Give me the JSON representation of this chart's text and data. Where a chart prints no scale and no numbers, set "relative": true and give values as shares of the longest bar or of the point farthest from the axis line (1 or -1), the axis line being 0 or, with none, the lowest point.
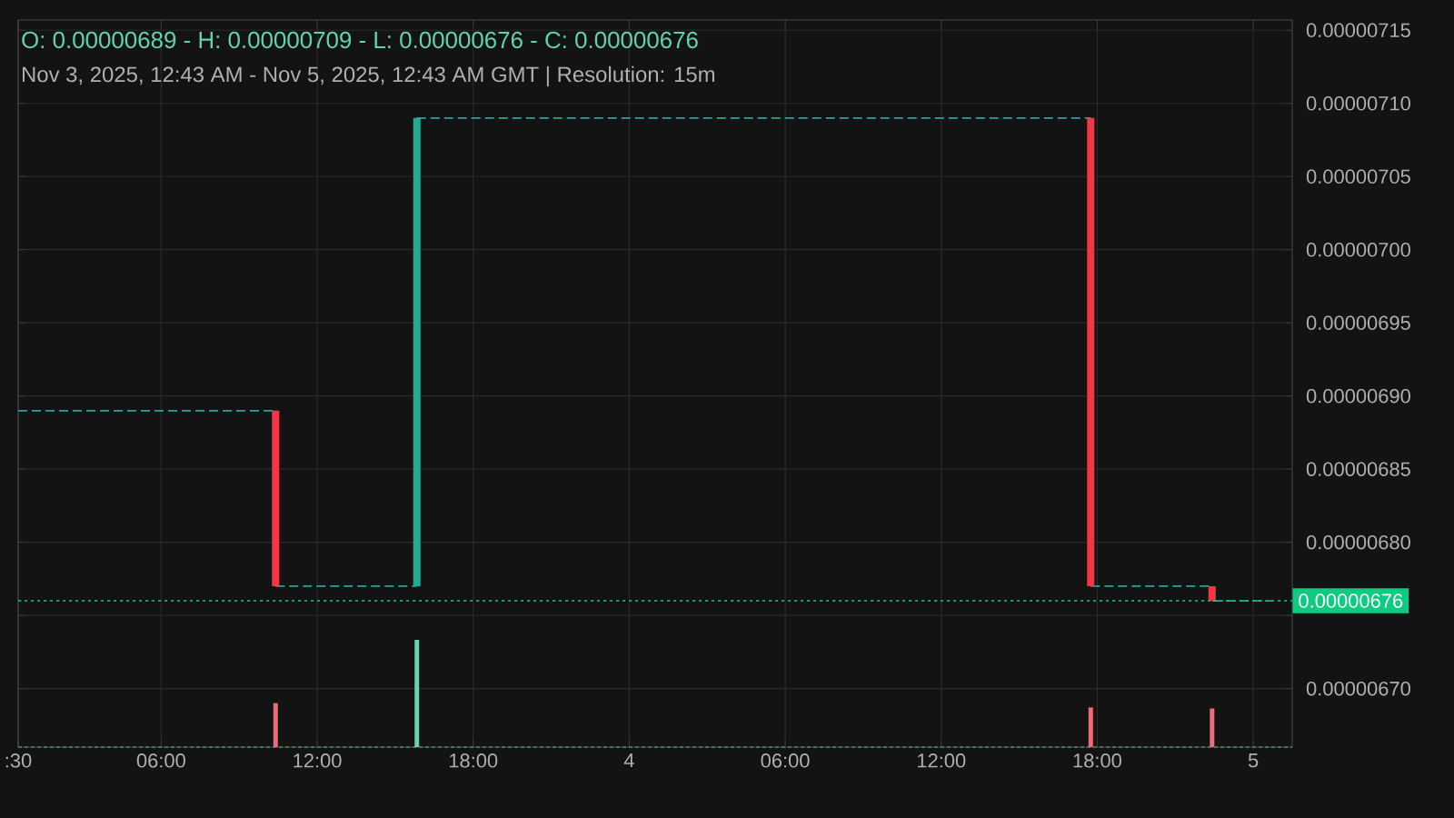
{
  "chart_data": [
    {
      "type": "candlestick",
      "title": "O: 0.00000689 - H: 0.00000709 - L: 0.00000676 - C: 0.00000676",
      "subtitle": "Nov 3, 2025, 12:43 AM - Nov 5, 2025, 12:43 AM GMT   |   Resolution: 15m",
      "x": [
        "2025-11-03T10:24",
        "2025-11-03T15:50",
        "2025-11-04T17:45",
        "2025-11-04T22:25"
      ],
      "ohlc": [
        [
          6.89e-06,
          6.89e-06,
          6.77e-06,
          6.77e-06
        ],
        [
          6.77e-06,
          7.09e-06,
          6.77e-06,
          7.09e-06
        ],
        [
          7.09e-06,
          7.09e-06,
          6.77e-06,
          6.77e-06
        ],
        [
          6.77e-06,
          6.77e-06,
          6.76e-06,
          6.76e-06
        ]
      ],
      "colors": [
        "#f23645",
        "#22ab94",
        "#f23645",
        "#f23645"
      ],
      "series": [
        {
          "type": "line",
          "color": "#26a69a",
          "line_style": "dashed",
          "x": [
            "2025-11-03T00:30",
            "2025-11-03T10:24"
          ],
          "values": [
            6.89e-06,
            6.89e-06
          ]
        },
        {
          "type": "line",
          "color": "#26a69a",
          "line_style": "dashed",
          "x": [
            "2025-11-03T10:24",
            "2025-11-03T15:50"
          ],
          "values": [
            6.77e-06,
            6.77e-06
          ]
        },
        {
          "type": "line",
          "color": "#26a69a",
          "line_style": "dashed",
          "x": [
            "2025-11-03T15:50",
            "2025-11-04T17:45"
          ],
          "values": [
            7.09e-06,
            7.09e-06
          ]
        },
        {
          "type": "line",
          "color": "#26a69a",
          "line_style": "dashed",
          "x": [
            "2025-11-04T17:45",
            "2025-11-04T22:25"
          ],
          "values": [
            6.77e-06,
            6.77e-06
          ]
        },
        {
          "type": "line",
          "color": "#26a69a",
          "line_style": "dashed",
          "x": [
            "2025-11-04T22:25",
            "2025-11-05T00:45"
          ],
          "values": [
            6.76e-06,
            6.76e-06
          ]
        }
      ],
      "ref_lines": [
        {
          "axis": "y",
          "value": 6.76e-06,
          "label": "0.00000676",
          "color": "#0ecb81",
          "line_style": "dotted"
        }
      ],
      "xlim": [
        "2025-11-03T00:30",
        "2025-11-05T01:30"
      ],
      "ylim": [
        6.66e-06,
        7.157e-06
      ],
      "xticks": [
        {
          "value": "2025-11-03T00:30",
          "label": ":30"
        },
        {
          "value": "2025-11-03T06:00",
          "label": "06:00"
        },
        {
          "value": "2025-11-03T12:00",
          "label": "12:00"
        },
        {
          "value": "2025-11-03T18:00",
          "label": "18:00"
        },
        {
          "value": "2025-11-04T00:00",
          "label": "4"
        },
        {
          "value": "2025-11-04T06:00",
          "label": "06:00"
        },
        {
          "value": "2025-11-04T12:00",
          "label": "12:00"
        },
        {
          "value": "2025-11-04T18:00",
          "label": "18:00"
        },
        {
          "value": "2025-11-05T00:00",
          "label": "5"
        }
      ],
      "yticks": [
        {
          "value": 6.7e-06,
          "label": "0.00000670"
        },
        {
          "value": 6.75e-06,
          "label": null
        },
        {
          "value": 6.8e-06,
          "label": "0.00000680"
        },
        {
          "value": 6.85e-06,
          "label": "0.00000685"
        },
        {
          "value": 6.9e-06,
          "label": "0.00000690"
        },
        {
          "value": 6.95e-06,
          "label": "0.00000695"
        },
        {
          "value": 7e-06,
          "label": "0.00000700"
        },
        {
          "value": 7.05e-06,
          "label": "0.00000705"
        },
        {
          "value": 7.1e-06,
          "label": "0.00000710"
        },
        {
          "value": 7.15e-06,
          "label": "0.00000715"
        }
      ],
      "grid": true
    },
    {
      "type": "bar",
      "relative": true,
      "x": [
        "2025-11-03T10:24",
        "2025-11-03T15:50",
        "2025-11-04T17:45",
        "2025-11-04T22:25"
      ],
      "values": [
        0.41,
        1,
        0.37,
        0.36
      ],
      "colors": [
        "#f06a7a",
        "#6fcfb0",
        "#f06a7a",
        "#f06a7a"
      ],
      "xlim": [
        "2025-11-03T00:30",
        "2025-11-05T01:30"
      ]
    }
  ]
}
